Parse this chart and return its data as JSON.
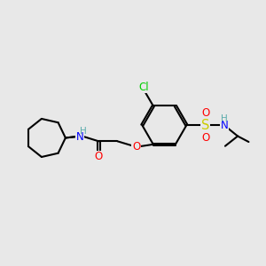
{
  "background_color": "#e8e8e8",
  "bond_color": "#000000",
  "bond_width": 1.5,
  "atom_colors": {
    "C": "#000000",
    "H": "#5aacac",
    "N": "#0000ff",
    "O": "#ff0000",
    "S": "#cccc00",
    "Cl": "#00cc00"
  },
  "font_size": 8.5,
  "figsize": [
    3.0,
    3.0
  ],
  "dpi": 100
}
